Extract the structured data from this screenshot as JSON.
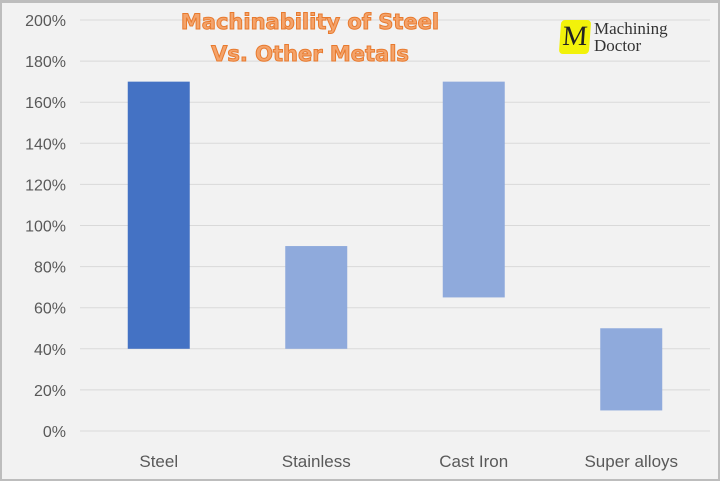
{
  "chart_data": {
    "type": "bar",
    "subtype": "floating-range",
    "title": [
      "Machinability of Steel",
      "Vs. Other Metals"
    ],
    "categories": [
      "Steel",
      "Stainless",
      "Cast Iron",
      "Super alloys"
    ],
    "ranges": [
      [
        40,
        170
      ],
      [
        40,
        90
      ],
      [
        65,
        170
      ],
      [
        10,
        50
      ]
    ],
    "colors": [
      "#4472c4",
      "#8faadc",
      "#8faadc",
      "#8faadc"
    ],
    "ylim": [
      0,
      200
    ],
    "yticks": [
      "0%",
      "20%",
      "40%",
      "60%",
      "80%",
      "100%",
      "120%",
      "140%",
      "160%",
      "180%",
      "200%"
    ],
    "grid": true,
    "xlabel": "",
    "ylabel": ""
  },
  "logo": {
    "letter": "M",
    "line1": "Machining",
    "line2": "Doctor"
  }
}
